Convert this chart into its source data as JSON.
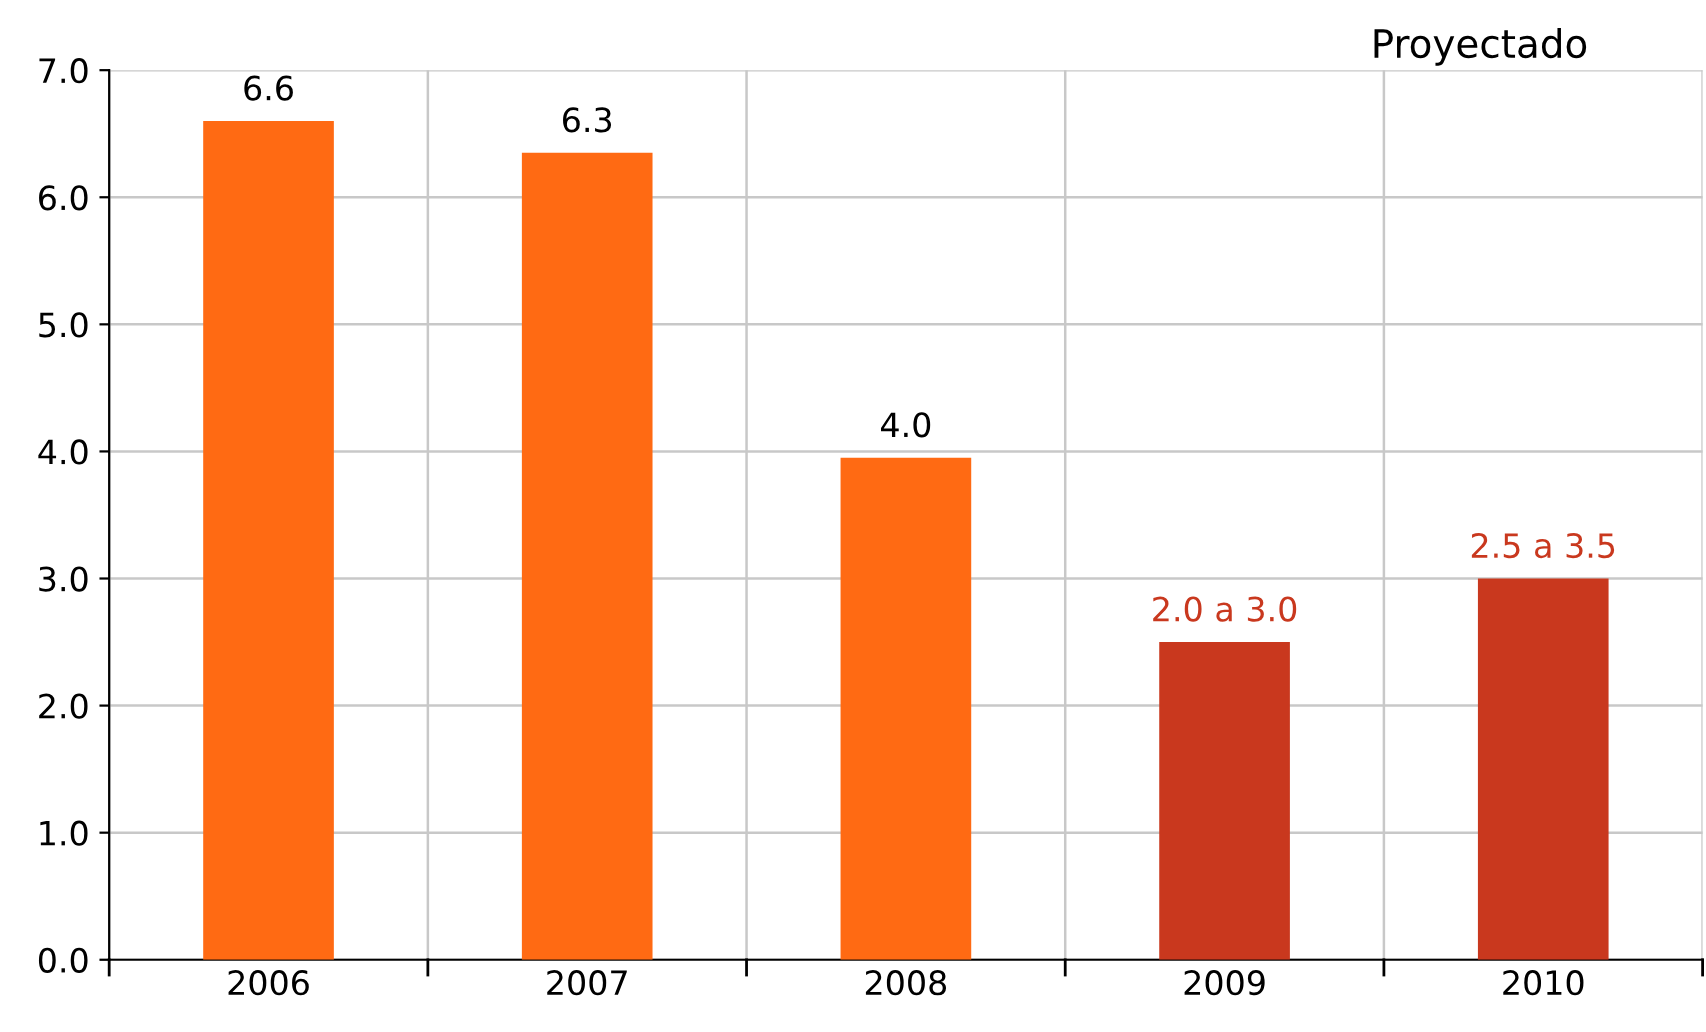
{
  "chart_data": {
    "type": "bar",
    "categories": [
      "2006",
      "2007",
      "2008",
      "2009",
      "2010"
    ],
    "values": [
      6.6,
      6.35,
      3.95,
      2.5,
      3.0
    ],
    "colors": [
      "#ff6a13",
      "#ff6a13",
      "#ff6a13",
      "#c9381e",
      "#c9381e"
    ],
    "value_labels": [
      "6.6",
      "6.3",
      "4.0",
      null,
      null
    ],
    "ylim": [
      0,
      7
    ],
    "yticks": [
      {
        "value": 0,
        "label": "0.0"
      },
      {
        "value": 1,
        "label": "1.0"
      },
      {
        "value": 2,
        "label": "2.0"
      },
      {
        "value": 3,
        "label": "3.0"
      },
      {
        "value": 4,
        "label": "4.0"
      },
      {
        "value": 5,
        "label": "5.0"
      },
      {
        "value": 6,
        "label": "6.0"
      },
      {
        "value": 7,
        "label": "7.0"
      }
    ],
    "grid": true,
    "annotations": [
      "Proyectado",
      {
        "text": "2.0 a 3.0",
        "x": "2009",
        "y": 2.5
      },
      {
        "text": "2.5 a 3.5",
        "x": "2010",
        "y": 3.0
      }
    ]
  }
}
